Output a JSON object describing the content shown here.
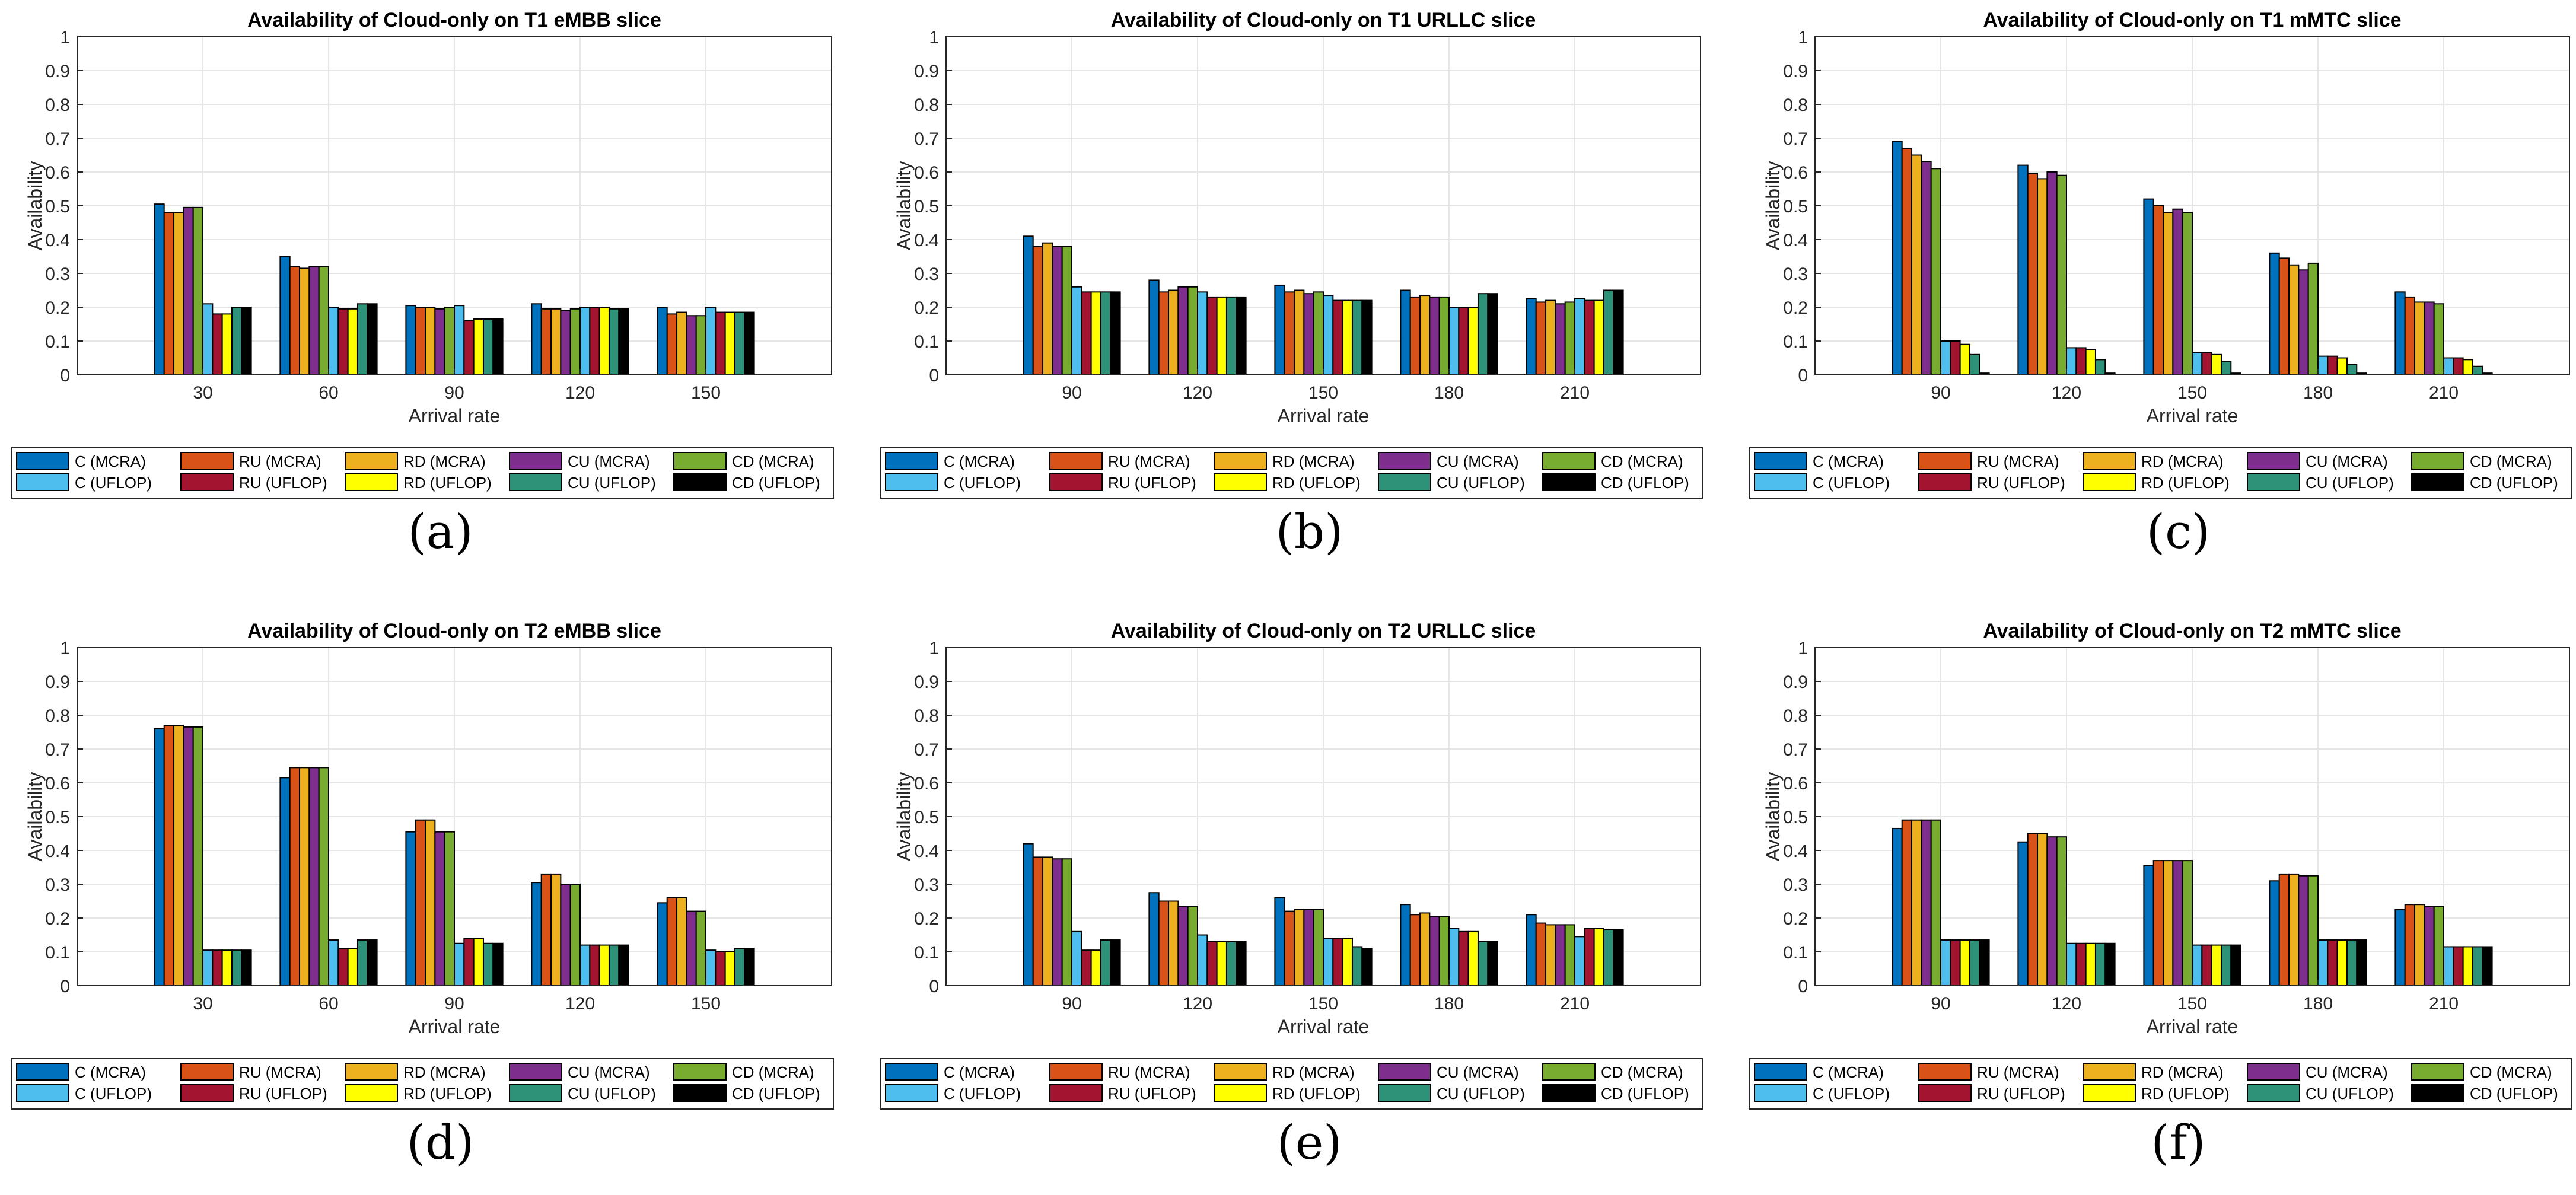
{
  "figure": {
    "colors": [
      "#0072BD",
      "#D95319",
      "#EDB120",
      "#7E2F8E",
      "#77AC30",
      "#4DBEEE",
      "#A2142F",
      "#FFFF00",
      "#2E9278",
      "#000000"
    ],
    "legend_labels": [
      "C (MCRA)",
      "RU (MCRA)",
      "RD (MCRA)",
      "CU (MCRA)",
      "CD (MCRA)",
      "C (UFLOP)",
      "RU (UFLOP)",
      "RD (UFLOP)",
      "CU (UFLOP)",
      "CD (UFLOP)"
    ],
    "legend_labels_d": [
      "C (MCRA)",
      "RU (MCRA)",
      "RD (MCRA)",
      "CU (MCRA)",
      "CD (MCRA)",
      "C (UFLOP)",
      "RU (UFLOP)",
      "RD (UFLOP)",
      "CU (UFLOP)",
      "CD  (UFLOP)"
    ]
  },
  "chart_data": [
    {
      "id": "a",
      "panel_label": "(a)",
      "type": "bar",
      "title": "Availability of Cloud-only on T1 eMBB slice",
      "xlabel": "Arrival rate",
      "ylabel": "Availability",
      "ylim": [
        0,
        1
      ],
      "yticks": [
        "0",
        "0.1",
        "0.2",
        "0.3",
        "0.4",
        "0.5",
        "0.6",
        "0.7",
        "0.8",
        "0.9",
        "1"
      ],
      "grid": true,
      "xlim": [
        0,
        180
      ],
      "categories": [
        "30",
        "60",
        "90",
        "120",
        "150"
      ],
      "values": [
        [
          0.505,
          0.48,
          0.48,
          0.495,
          0.495,
          0.21,
          0.18,
          0.18,
          0.2,
          0.2
        ],
        [
          0.35,
          0.32,
          0.315,
          0.32,
          0.32,
          0.2,
          0.195,
          0.195,
          0.21,
          0.21
        ],
        [
          0.205,
          0.2,
          0.2,
          0.195,
          0.2,
          0.205,
          0.16,
          0.165,
          0.165,
          0.165
        ],
        [
          0.21,
          0.195,
          0.195,
          0.19,
          0.195,
          0.2,
          0.2,
          0.2,
          0.195,
          0.195
        ],
        [
          0.2,
          0.18,
          0.185,
          0.175,
          0.175,
          0.2,
          0.185,
          0.185,
          0.185,
          0.185
        ]
      ]
    },
    {
      "id": "b",
      "panel_label": "(b)",
      "type": "bar",
      "title": "Availability of Cloud-only on T1 URLLC slice",
      "xlabel": "Arrival rate",
      "ylabel": "Availability",
      "ylim": [
        0,
        1
      ],
      "yticks": [
        "0",
        "0.1",
        "0.2",
        "0.3",
        "0.4",
        "0.5",
        "0.6",
        "0.7",
        "0.8",
        "0.9",
        "1"
      ],
      "grid": true,
      "xlim": [
        0,
        270
      ],
      "categories": [
        "90",
        "120",
        "150",
        "180",
        "210"
      ],
      "values": [
        [
          0.41,
          0.38,
          0.39,
          0.38,
          0.38,
          0.26,
          0.245,
          0.245,
          0.245,
          0.245
        ],
        [
          0.28,
          0.245,
          0.25,
          0.26,
          0.26,
          0.245,
          0.23,
          0.23,
          0.23,
          0.23
        ],
        [
          0.265,
          0.245,
          0.25,
          0.24,
          0.245,
          0.235,
          0.22,
          0.22,
          0.22,
          0.22
        ],
        [
          0.25,
          0.23,
          0.235,
          0.23,
          0.23,
          0.2,
          0.2,
          0.2,
          0.24,
          0.24
        ],
        [
          0.225,
          0.215,
          0.22,
          0.21,
          0.215,
          0.225,
          0.22,
          0.22,
          0.25,
          0.25
        ]
      ]
    },
    {
      "id": "c",
      "panel_label": "(c)",
      "type": "bar",
      "title": "Availability of Cloud-only on T1 mMTC slice",
      "xlabel": "Arrival rate",
      "ylabel": "Availability",
      "ylim": [
        0,
        1
      ],
      "yticks": [
        "0",
        "0.1",
        "0.2",
        "0.3",
        "0.4",
        "0.5",
        "0.6",
        "0.7",
        "0.8",
        "0.9",
        "1"
      ],
      "grid": true,
      "xlim": [
        0,
        270
      ],
      "categories": [
        "90",
        "120",
        "150",
        "180",
        "210"
      ],
      "values": [
        [
          0.69,
          0.67,
          0.65,
          0.63,
          0.61,
          0.1,
          0.1,
          0.09,
          0.06,
          0.005
        ],
        [
          0.62,
          0.595,
          0.58,
          0.6,
          0.59,
          0.08,
          0.08,
          0.075,
          0.045,
          0.005
        ],
        [
          0.52,
          0.5,
          0.48,
          0.49,
          0.48,
          0.065,
          0.065,
          0.06,
          0.04,
          0.005
        ],
        [
          0.36,
          0.345,
          0.325,
          0.31,
          0.33,
          0.055,
          0.055,
          0.05,
          0.03,
          0.005
        ],
        [
          0.245,
          0.23,
          0.215,
          0.215,
          0.21,
          0.05,
          0.05,
          0.045,
          0.025,
          0.005
        ]
      ]
    },
    {
      "id": "d",
      "panel_label": "(d)",
      "type": "bar",
      "title": "Availability of Cloud-only on T2 eMBB slice",
      "xlabel": "Arrival rate",
      "ylabel": "Availability",
      "ylim": [
        0,
        1
      ],
      "yticks": [
        "0",
        "0.1",
        "0.2",
        "0.3",
        "0.4",
        "0.5",
        "0.6",
        "0.7",
        "0.8",
        "0.9",
        "1"
      ],
      "grid": true,
      "xlim": [
        0,
        180
      ],
      "categories": [
        "30",
        "60",
        "90",
        "120",
        "150"
      ],
      "values": [
        [
          0.76,
          0.77,
          0.77,
          0.765,
          0.765,
          0.105,
          0.105,
          0.105,
          0.105,
          0.105
        ],
        [
          0.615,
          0.645,
          0.645,
          0.645,
          0.645,
          0.135,
          0.11,
          0.11,
          0.135,
          0.135
        ],
        [
          0.455,
          0.49,
          0.49,
          0.455,
          0.455,
          0.125,
          0.14,
          0.14,
          0.125,
          0.125
        ],
        [
          0.305,
          0.33,
          0.33,
          0.3,
          0.3,
          0.12,
          0.12,
          0.12,
          0.12,
          0.12
        ],
        [
          0.245,
          0.26,
          0.26,
          0.22,
          0.22,
          0.105,
          0.1,
          0.1,
          0.11,
          0.11
        ]
      ]
    },
    {
      "id": "e",
      "panel_label": "(e)",
      "type": "bar",
      "title": "Availability of Cloud-only on T2 URLLC slice",
      "xlabel": "Arrival rate",
      "ylabel": "Availability",
      "ylim": [
        0,
        1
      ],
      "yticks": [
        "0",
        "0.1",
        "0.2",
        "0.3",
        "0.4",
        "0.5",
        "0.6",
        "0.7",
        "0.8",
        "0.9",
        "1"
      ],
      "grid": true,
      "xlim": [
        0,
        270
      ],
      "categories": [
        "90",
        "120",
        "150",
        "180",
        "210"
      ],
      "values": [
        [
          0.42,
          0.38,
          0.38,
          0.375,
          0.375,
          0.16,
          0.105,
          0.105,
          0.135,
          0.135
        ],
        [
          0.275,
          0.25,
          0.25,
          0.235,
          0.235,
          0.15,
          0.13,
          0.13,
          0.13,
          0.13
        ],
        [
          0.26,
          0.22,
          0.225,
          0.225,
          0.225,
          0.14,
          0.14,
          0.14,
          0.115,
          0.11
        ],
        [
          0.24,
          0.21,
          0.215,
          0.205,
          0.205,
          0.17,
          0.16,
          0.16,
          0.13,
          0.13
        ],
        [
          0.21,
          0.185,
          0.18,
          0.18,
          0.18,
          0.145,
          0.17,
          0.17,
          0.165,
          0.165
        ]
      ]
    },
    {
      "id": "f",
      "panel_label": "(f)",
      "type": "bar",
      "title": "Availability of Cloud-only on T2 mMTC slice",
      "xlabel": "Arrival rate",
      "ylabel": "Availability",
      "ylim": [
        0,
        1
      ],
      "yticks": [
        "0",
        "0.1",
        "0.2",
        "0.3",
        "0.4",
        "0.5",
        "0.6",
        "0.7",
        "0.8",
        "0.9",
        "1"
      ],
      "grid": true,
      "xlim": [
        0,
        270
      ],
      "categories": [
        "90",
        "120",
        "150",
        "180",
        "210"
      ],
      "values": [
        [
          0.465,
          0.49,
          0.49,
          0.49,
          0.49,
          0.135,
          0.135,
          0.135,
          0.135,
          0.135
        ],
        [
          0.425,
          0.45,
          0.45,
          0.44,
          0.44,
          0.125,
          0.125,
          0.125,
          0.125,
          0.125
        ],
        [
          0.355,
          0.37,
          0.37,
          0.37,
          0.37,
          0.12,
          0.12,
          0.12,
          0.12,
          0.12
        ],
        [
          0.31,
          0.33,
          0.33,
          0.325,
          0.325,
          0.135,
          0.135,
          0.135,
          0.135,
          0.135
        ],
        [
          0.225,
          0.24,
          0.24,
          0.235,
          0.235,
          0.115,
          0.115,
          0.115,
          0.115,
          0.115
        ]
      ]
    }
  ]
}
